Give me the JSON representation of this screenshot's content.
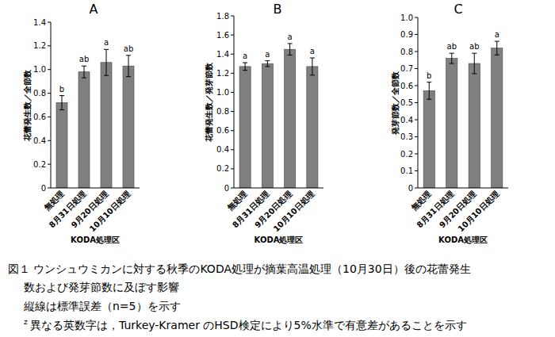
{
  "chart_data": [
    {
      "type": "bar",
      "title": "A",
      "categories": [
        "無処理",
        "8月31日処理",
        "9月20日処理",
        "10月10日処理"
      ],
      "values": [
        0.72,
        0.98,
        1.06,
        1.03
      ],
      "errors": [
        0.06,
        0.05,
        0.11,
        0.09
      ],
      "annotations": [
        "b",
        "ab",
        "a",
        "ab"
      ],
      "color": "#808080",
      "x_label": "KODA処理区",
      "y_label": "花蕾発生数／全節数",
      "ylim": [
        0,
        1.4
      ],
      "yticks": [
        0,
        0.2,
        0.4,
        0.6,
        0.8,
        {
          "value": 1.0,
          "label": "1.0"
        },
        1.2,
        1.4
      ],
      "grid": false
    },
    {
      "type": "bar",
      "title": "B",
      "categories": [
        "無処理",
        "8月31日処理",
        "9月20日処理",
        "10月10日処理"
      ],
      "values": [
        1.27,
        1.3,
        1.45,
        1.27
      ],
      "errors": [
        0.04,
        0.03,
        0.06,
        0.09
      ],
      "annotations": [
        "a",
        "a",
        "a",
        "a"
      ],
      "color": "#808080",
      "x_label": "KODA処理区",
      "y_label": "花蕾発生数／発芽節数",
      "ylim": [
        0,
        1.8
      ],
      "yticks": [
        0,
        0.2,
        0.4,
        0.6,
        0.8,
        {
          "value": 1.0,
          "label": "1.0"
        },
        1.2,
        1.4,
        1.6,
        1.8
      ],
      "grid": false
    },
    {
      "type": "bar",
      "title": "C",
      "categories": [
        "無処理",
        "8月31日処理",
        "9月20日処理",
        "10月10日処理"
      ],
      "values": [
        0.57,
        0.76,
        0.73,
        0.82
      ],
      "errors": [
        0.05,
        0.03,
        0.06,
        0.04
      ],
      "annotations": [
        "b",
        "ab",
        "ab",
        "a"
      ],
      "color": "#808080",
      "x_label": "KODA処理区",
      "y_label": "発芽節数／全節数",
      "ylim": [
        0,
        1.0
      ],
      "yticks": [
        0,
        0.1,
        0.2,
        0.3,
        0.4,
        0.5,
        0.6,
        0.7,
        0.8,
        0.9,
        {
          "value": 1.0,
          "label": "1.0"
        }
      ],
      "grid": false
    }
  ],
  "caption": {
    "lines": [
      "図１ ウンシュウミカンに対する秋季のKODA処理が摘葉高温処理（10月30日）後の花蕾発生",
      "数および発芽節数に及ぼす影響",
      "縦線は標準誤差（n=5）を示す"
    ],
    "note_mark": "z",
    "note": "異なる英数字は，Turkey-Kramer のHSD検定により5%水準で有意差があることを示す"
  }
}
